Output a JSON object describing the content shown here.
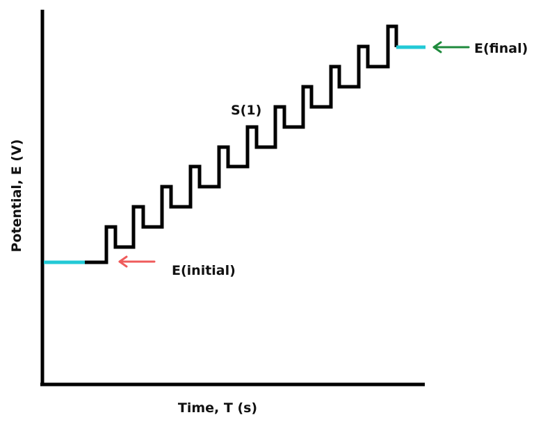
{
  "diagram": {
    "y_axis_label": "Potential, E (V)",
    "x_axis_label": "Time, T (s)",
    "initial_label": "E(initial)",
    "final_label": "E(final)",
    "step_label": "S(1)",
    "colors": {
      "axis": "#000000",
      "waveform": "#000000",
      "baseline_segments": "#22c9d6",
      "initial_arrow": "#ef5b5b",
      "final_arrow": "#1e8a3c"
    }
  }
}
